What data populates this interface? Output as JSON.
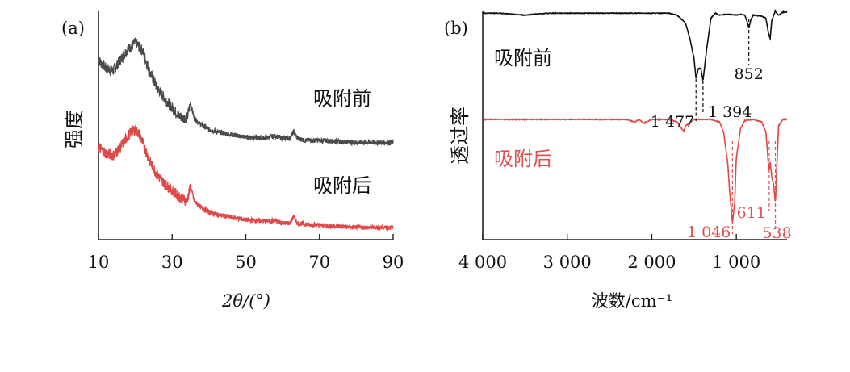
{
  "chart_data": [
    {
      "panel_label": "(a)",
      "type": "line",
      "xlabel": "2θ/(°)",
      "ylabel": "强度",
      "xlim": [
        10,
        90
      ],
      "xticks": [
        10,
        30,
        50,
        70,
        90
      ],
      "series": [
        {
          "name": "吸附前",
          "color": "#4a4a4a",
          "x": [
            10,
            12,
            14,
            16,
            18,
            19,
            20,
            21,
            22,
            24,
            26,
            28,
            30,
            32,
            34,
            35,
            36,
            38,
            40,
            42,
            45,
            50,
            55,
            58,
            60,
            62,
            63,
            64,
            66,
            70,
            75,
            80,
            85,
            90
          ],
          "y": [
            0.8,
            0.76,
            0.75,
            0.8,
            0.85,
            0.86,
            0.88,
            0.86,
            0.84,
            0.74,
            0.67,
            0.62,
            0.58,
            0.54,
            0.53,
            0.6,
            0.53,
            0.5,
            0.48,
            0.47,
            0.46,
            0.445,
            0.44,
            0.45,
            0.44,
            0.44,
            0.47,
            0.44,
            0.43,
            0.43,
            0.425,
            0.42,
            0.42,
            0.42
          ]
        },
        {
          "name": "吸附后",
          "color": "#e04848",
          "x": [
            10,
            12,
            14,
            16,
            18,
            19,
            20,
            21,
            22,
            24,
            26,
            28,
            30,
            32,
            34,
            35,
            36,
            38,
            40,
            42,
            45,
            50,
            55,
            58,
            60,
            62,
            63,
            64,
            66,
            70,
            75,
            80,
            85,
            90
          ],
          "y": [
            0.4,
            0.37,
            0.36,
            0.4,
            0.45,
            0.47,
            0.48,
            0.46,
            0.42,
            0.33,
            0.27,
            0.23,
            0.2,
            0.17,
            0.15,
            0.22,
            0.15,
            0.12,
            0.1,
            0.09,
            0.08,
            0.065,
            0.06,
            0.06,
            0.05,
            0.05,
            0.08,
            0.05,
            0.045,
            0.04,
            0.035,
            0.03,
            0.03,
            0.03
          ]
        }
      ]
    },
    {
      "panel_label": "(b)",
      "type": "line",
      "xlabel": "波数/cm⁻¹",
      "ylabel": "透过率",
      "xlim": [
        4000,
        400
      ],
      "xticks": [
        4000,
        3000,
        2000,
        1000
      ],
      "xtick_labels": [
        "4 000",
        "3 000",
        "2 000",
        "1 000"
      ],
      "series": [
        {
          "name": "吸附前",
          "color": "#111111",
          "x": [
            4000,
            3800,
            3500,
            3400,
            3200,
            3000,
            2800,
            2500,
            2200,
            2000,
            1800,
            1700,
            1600,
            1550,
            1500,
            1477,
            1450,
            1420,
            1394,
            1350,
            1300,
            1250,
            1200,
            1100,
            1000,
            950,
            900,
            870,
            852,
            830,
            800,
            700,
            650,
            620,
            600,
            580,
            540,
            500,
            450,
            400
          ],
          "y": [
            0.95,
            0.95,
            0.93,
            0.94,
            0.95,
            0.95,
            0.95,
            0.95,
            0.95,
            0.95,
            0.95,
            0.93,
            0.85,
            0.7,
            0.5,
            0.3,
            0.4,
            0.4,
            0.28,
            0.6,
            0.9,
            0.95,
            0.93,
            0.94,
            0.93,
            0.94,
            0.93,
            0.86,
            0.8,
            0.88,
            0.93,
            0.92,
            0.9,
            0.75,
            0.7,
            0.88,
            0.97,
            0.93,
            0.96,
            0.96
          ]
        },
        {
          "name": "吸附后",
          "color": "#e04848",
          "x": [
            4000,
            3800,
            3500,
            3200,
            3000,
            2800,
            2500,
            2300,
            2200,
            2150,
            2100,
            2000,
            1800,
            1700,
            1650,
            1620,
            1600,
            1500,
            1400,
            1300,
            1200,
            1150,
            1100,
            1080,
            1046,
            1020,
            1000,
            950,
            900,
            800,
            700,
            650,
            620,
            611,
            600,
            580,
            560,
            538,
            520,
            500,
            450,
            400
          ],
          "y": [
            0.95,
            0.95,
            0.95,
            0.95,
            0.95,
            0.95,
            0.95,
            0.95,
            0.93,
            0.95,
            0.92,
            0.95,
            0.95,
            0.93,
            0.88,
            0.86,
            0.9,
            0.95,
            0.95,
            0.95,
            0.93,
            0.85,
            0.6,
            0.4,
            0.15,
            0.3,
            0.65,
            0.88,
            0.94,
            0.95,
            0.93,
            0.85,
            0.6,
            0.55,
            0.62,
            0.5,
            0.45,
            0.3,
            0.6,
            0.9,
            0.95,
            0.95
          ]
        }
      ],
      "annotations": [
        {
          "series": "吸附前",
          "text": "1 477",
          "x": 1477
        },
        {
          "series": "吸附前",
          "text": "1 394",
          "x": 1394
        },
        {
          "series": "吸附前",
          "text": "852",
          "x": 852
        },
        {
          "series": "吸附后",
          "text": "1 046",
          "x": 1046
        },
        {
          "series": "吸附后",
          "text": "611",
          "x": 611
        },
        {
          "series": "吸附后",
          "text": "538",
          "x": 538
        }
      ]
    }
  ]
}
